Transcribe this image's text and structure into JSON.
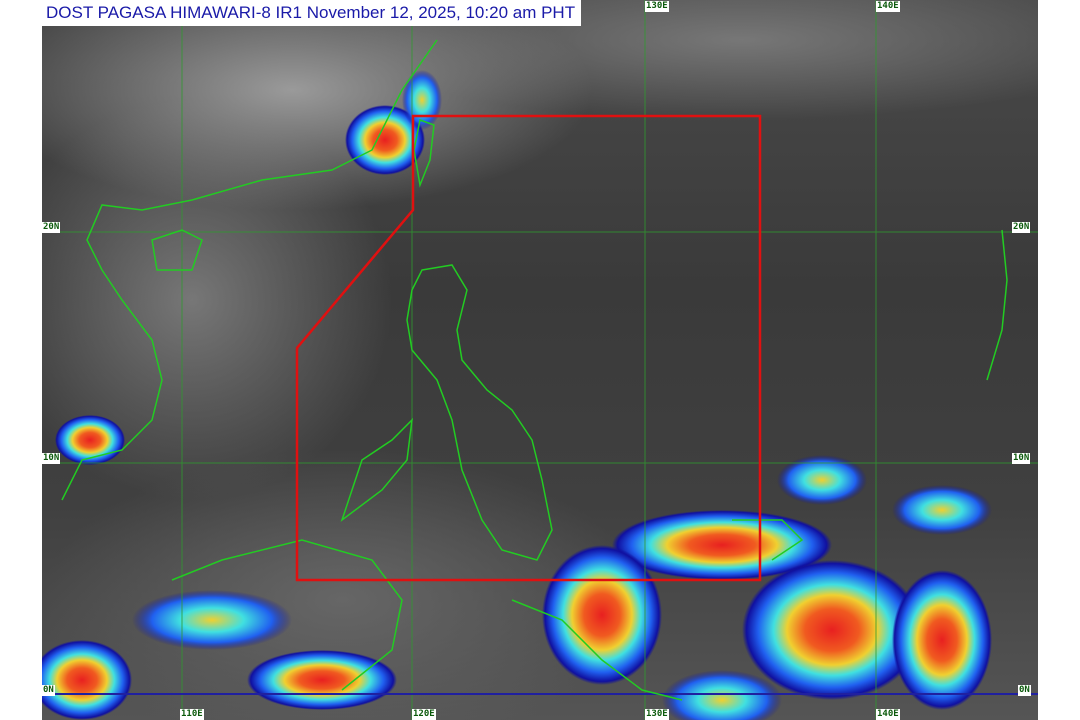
{
  "title": "DOST PAGASA HIMAWARI-8 IR1 November 12, 2025, 10:20 am PHT",
  "grid_labels": {
    "lon": [
      "110E",
      "120E",
      "130E",
      "140E"
    ],
    "lat": [
      "20N",
      "10N",
      "0N"
    ]
  },
  "colors": {
    "grid": "#2f9a2f",
    "coast": "#22cc22",
    "par_boundary": "#e01010",
    "equator": "#2020a0",
    "title_text": "#1a1aa8"
  }
}
